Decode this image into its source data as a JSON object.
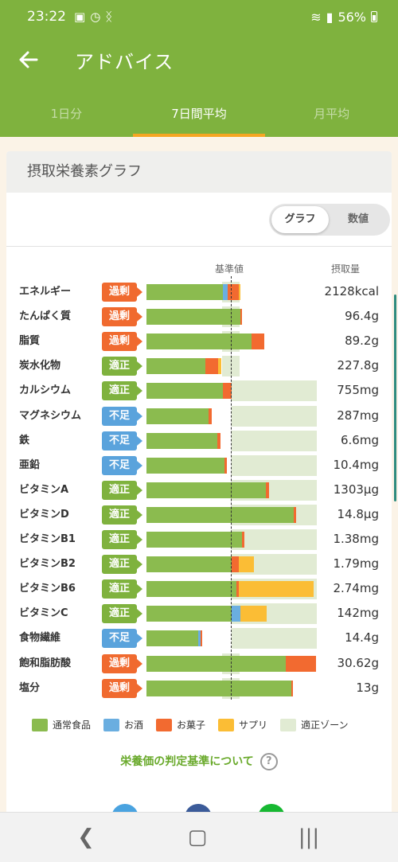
{
  "status_bar": {
    "time": "23:22",
    "battery": "56%"
  },
  "app_bar": {
    "title": "アドバイス"
  },
  "tabs": [
    {
      "label": "1日分",
      "active": false
    },
    {
      "label": "7日間平均",
      "active": true
    },
    {
      "label": "月平均",
      "active": false
    }
  ],
  "card": {
    "title": "摂取栄養素グラフ",
    "toggle": {
      "graph": "グラフ",
      "values": "数値",
      "selected": "グラフ"
    },
    "col_reference": "基準値",
    "col_intake": "摂取量"
  },
  "colors": {
    "normal": "#8bbb4f",
    "alcohol": "#6aaee0",
    "snack": "#f26a30",
    "supplement": "#fbbd35",
    "zone": "#e1ebd3",
    "over": "#f06a2f",
    "ok": "#7fb23e",
    "low": "#5aa3dc"
  },
  "nutrients": [
    {
      "name": "エネルギー",
      "status": "過剰",
      "status_key": "over",
      "amount": "2128kcal",
      "zone": [
        0.445,
        0.545
      ],
      "segments": [
        {
          "type": "normal",
          "v": 0.45
        },
        {
          "type": "alcohol",
          "v": 0.025
        },
        {
          "type": "snack",
          "v": 0.065
        },
        {
          "type": "supplement",
          "v": 0.012
        }
      ]
    },
    {
      "name": "たんぱく質",
      "status": "過剰",
      "status_key": "over",
      "amount": "96.4g",
      "zone": [
        0.445,
        0.545
      ],
      "segments": [
        {
          "type": "normal",
          "v": 0.55
        },
        {
          "type": "snack",
          "v": 0.012
        }
      ]
    },
    {
      "name": "脂質",
      "status": "過剰",
      "status_key": "over",
      "amount": "89.2g",
      "zone": [
        0.445,
        0.545
      ],
      "segments": [
        {
          "type": "normal",
          "v": 0.615
        },
        {
          "type": "snack",
          "v": 0.075
        }
      ]
    },
    {
      "name": "炭水化物",
      "status": "適正",
      "status_key": "ok",
      "amount": "227.8g",
      "zone": [
        0.445,
        0.545
      ],
      "segments": [
        {
          "type": "normal",
          "v": 0.345
        },
        {
          "type": "snack",
          "v": 0.075
        },
        {
          "type": "supplement",
          "v": 0.02
        }
      ]
    },
    {
      "name": "カルシウム",
      "status": "適正",
      "status_key": "ok",
      "amount": "755mg",
      "zone": [
        0.5,
        1.0
      ],
      "segments": [
        {
          "type": "normal",
          "v": 0.45
        },
        {
          "type": "snack",
          "v": 0.05
        }
      ]
    },
    {
      "name": "マグネシウム",
      "status": "不足",
      "status_key": "low",
      "amount": "287mg",
      "zone": [
        0.5,
        1.0
      ],
      "segments": [
        {
          "type": "normal",
          "v": 0.365
        },
        {
          "type": "snack",
          "v": 0.018
        }
      ]
    },
    {
      "name": "鉄",
      "status": "不足",
      "status_key": "low",
      "amount": "6.6mg",
      "zone": [
        0.5,
        1.0
      ],
      "segments": [
        {
          "type": "normal",
          "v": 0.415
        },
        {
          "type": "snack",
          "v": 0.018
        }
      ]
    },
    {
      "name": "亜鉛",
      "status": "不足",
      "status_key": "low",
      "amount": "10.4mg",
      "zone": [
        0.5,
        1.0
      ],
      "segments": [
        {
          "type": "normal",
          "v": 0.46
        },
        {
          "type": "snack",
          "v": 0.012
        }
      ]
    },
    {
      "name": "ビタミンA",
      "status": "適正",
      "status_key": "ok",
      "amount": "1303µg",
      "zone": [
        0.5,
        1.0
      ],
      "segments": [
        {
          "type": "normal",
          "v": 0.7
        },
        {
          "type": "snack",
          "v": 0.018
        }
      ]
    },
    {
      "name": "ビタミンD",
      "status": "適正",
      "status_key": "ok",
      "amount": "14.8µg",
      "zone": [
        0.5,
        1.0
      ],
      "segments": [
        {
          "type": "normal",
          "v": 0.865
        },
        {
          "type": "snack",
          "v": 0.012
        }
      ]
    },
    {
      "name": "ビタミンB1",
      "status": "適正",
      "status_key": "ok",
      "amount": "1.38mg",
      "zone": [
        0.5,
        1.0
      ],
      "segments": [
        {
          "type": "normal",
          "v": 0.56
        },
        {
          "type": "snack",
          "v": 0.015
        }
      ]
    },
    {
      "name": "ビタミンB2",
      "status": "適正",
      "status_key": "ok",
      "amount": "1.79mg",
      "zone": [
        0.5,
        1.0
      ],
      "segments": [
        {
          "type": "normal",
          "v": 0.5
        },
        {
          "type": "snack",
          "v": 0.04
        },
        {
          "type": "supplement",
          "v": 0.09
        }
      ]
    },
    {
      "name": "ビタミンB6",
      "status": "適正",
      "status_key": "ok",
      "amount": "2.74mg",
      "zone": [
        0.5,
        1.0
      ],
      "segments": [
        {
          "type": "normal",
          "v": 0.53
        },
        {
          "type": "snack",
          "v": 0.01
        },
        {
          "type": "supplement",
          "v": 0.44
        }
      ]
    },
    {
      "name": "ビタミンC",
      "status": "適正",
      "status_key": "ok",
      "amount": "142mg",
      "zone": [
        0.5,
        1.0
      ],
      "segments": [
        {
          "type": "normal",
          "v": 0.5
        },
        {
          "type": "alcohol",
          "v": 0.05
        },
        {
          "type": "supplement",
          "v": 0.155
        }
      ]
    },
    {
      "name": "食物繊維",
      "status": "不足",
      "status_key": "low",
      "amount": "14.4g",
      "zone": [
        0.5,
        1.0
      ],
      "segments": [
        {
          "type": "normal",
          "v": 0.305
        },
        {
          "type": "alcohol",
          "v": 0.012
        },
        {
          "type": "snack",
          "v": 0.012
        }
      ]
    },
    {
      "name": "飽和脂肪酸",
      "status": "過剰",
      "status_key": "over",
      "amount": "30.62g",
      "zone": [
        0.445,
        0.545
      ],
      "segments": [
        {
          "type": "normal",
          "v": 0.82
        },
        {
          "type": "snack",
          "v": 0.175
        }
      ]
    },
    {
      "name": "塩分",
      "status": "過剰",
      "status_key": "over",
      "amount": "13g",
      "zone": [
        0.445,
        0.545
      ],
      "segments": [
        {
          "type": "normal",
          "v": 0.85
        },
        {
          "type": "snack",
          "v": 0.012
        }
      ]
    }
  ],
  "legend": [
    {
      "label": "通常食品",
      "type": "normal"
    },
    {
      "label": "お酒",
      "type": "alcohol"
    },
    {
      "label": "お菓子",
      "type": "snack"
    },
    {
      "label": "サプリ",
      "type": "supplement"
    },
    {
      "label": "適正ゾーン",
      "type": "zone"
    }
  ],
  "judge_link": "栄養価の判定基準について",
  "judge_icon": "?",
  "nav": {
    "back": "❮",
    "home": "▢",
    "recents": "|||"
  }
}
